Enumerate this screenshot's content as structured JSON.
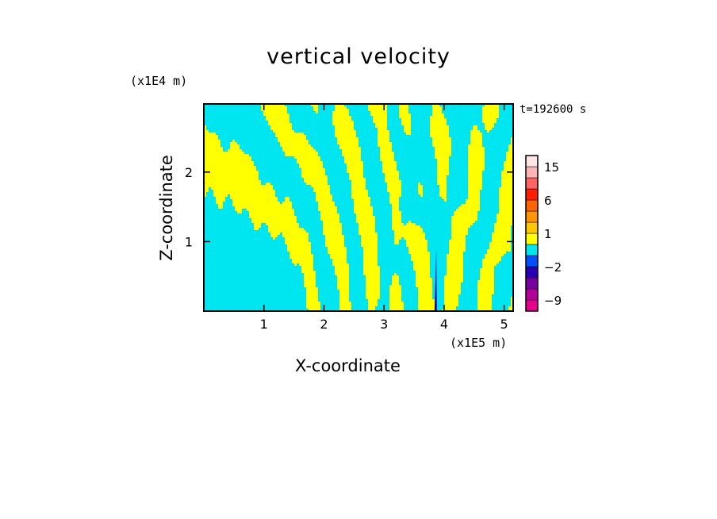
{
  "chart_data": {
    "type": "heatmap",
    "title": "vertical velocity",
    "xlabel": "X-coordinate",
    "ylabel": "Z-coordinate",
    "x_unit": "(x1E5 m)",
    "y_unit": "(x1E4 m)",
    "time_label": "t=192600 s",
    "xlim": [
      0,
      5.15
    ],
    "ylim": [
      0,
      2.98
    ],
    "x_ticks": [
      1,
      2,
      3,
      4,
      5
    ],
    "x_tick_labels": [
      "1",
      "2",
      "3",
      "4",
      "5"
    ],
    "y_ticks": [
      1,
      2
    ],
    "y_tick_labels": [
      "1",
      "2"
    ],
    "colorbar": {
      "levels": [
        {
          "min": -12,
          "max": -9,
          "color": "#e6008c"
        },
        {
          "min": -9,
          "max": -6,
          "color": "#b4009b"
        },
        {
          "min": -6,
          "max": -4,
          "color": "#7800a0"
        },
        {
          "min": -4,
          "max": -2,
          "color": "#2800b4"
        },
        {
          "min": -2,
          "max": -1,
          "color": "#0050ff"
        },
        {
          "min": -1,
          "max": 0,
          "color": "#00e6f0"
        },
        {
          "min": 0,
          "max": 1,
          "color": "#ffff00"
        },
        {
          "min": 1,
          "max": 2,
          "color": "#ffc800"
        },
        {
          "min": 2,
          "max": 4,
          "color": "#ff9600"
        },
        {
          "min": 4,
          "max": 6,
          "color": "#ff6400"
        },
        {
          "min": 6,
          "max": 9,
          "color": "#ff1e00"
        },
        {
          "min": 9,
          "max": 12,
          "color": "#ff6464"
        },
        {
          "min": 12,
          "max": 15,
          "color": "#ffb4b4"
        },
        {
          "min": 15,
          "max": 20,
          "color": "#ffe6e6"
        }
      ],
      "tick_labels": [
        "15",
        "6",
        "1",
        "−2",
        "−9"
      ],
      "tick_values": [
        15,
        6,
        1,
        -2,
        -9
      ]
    },
    "field_note_colors": {
      "positive": "#ffff00",
      "negative": "#00e6f0",
      "strong": "#2800b4"
    }
  }
}
